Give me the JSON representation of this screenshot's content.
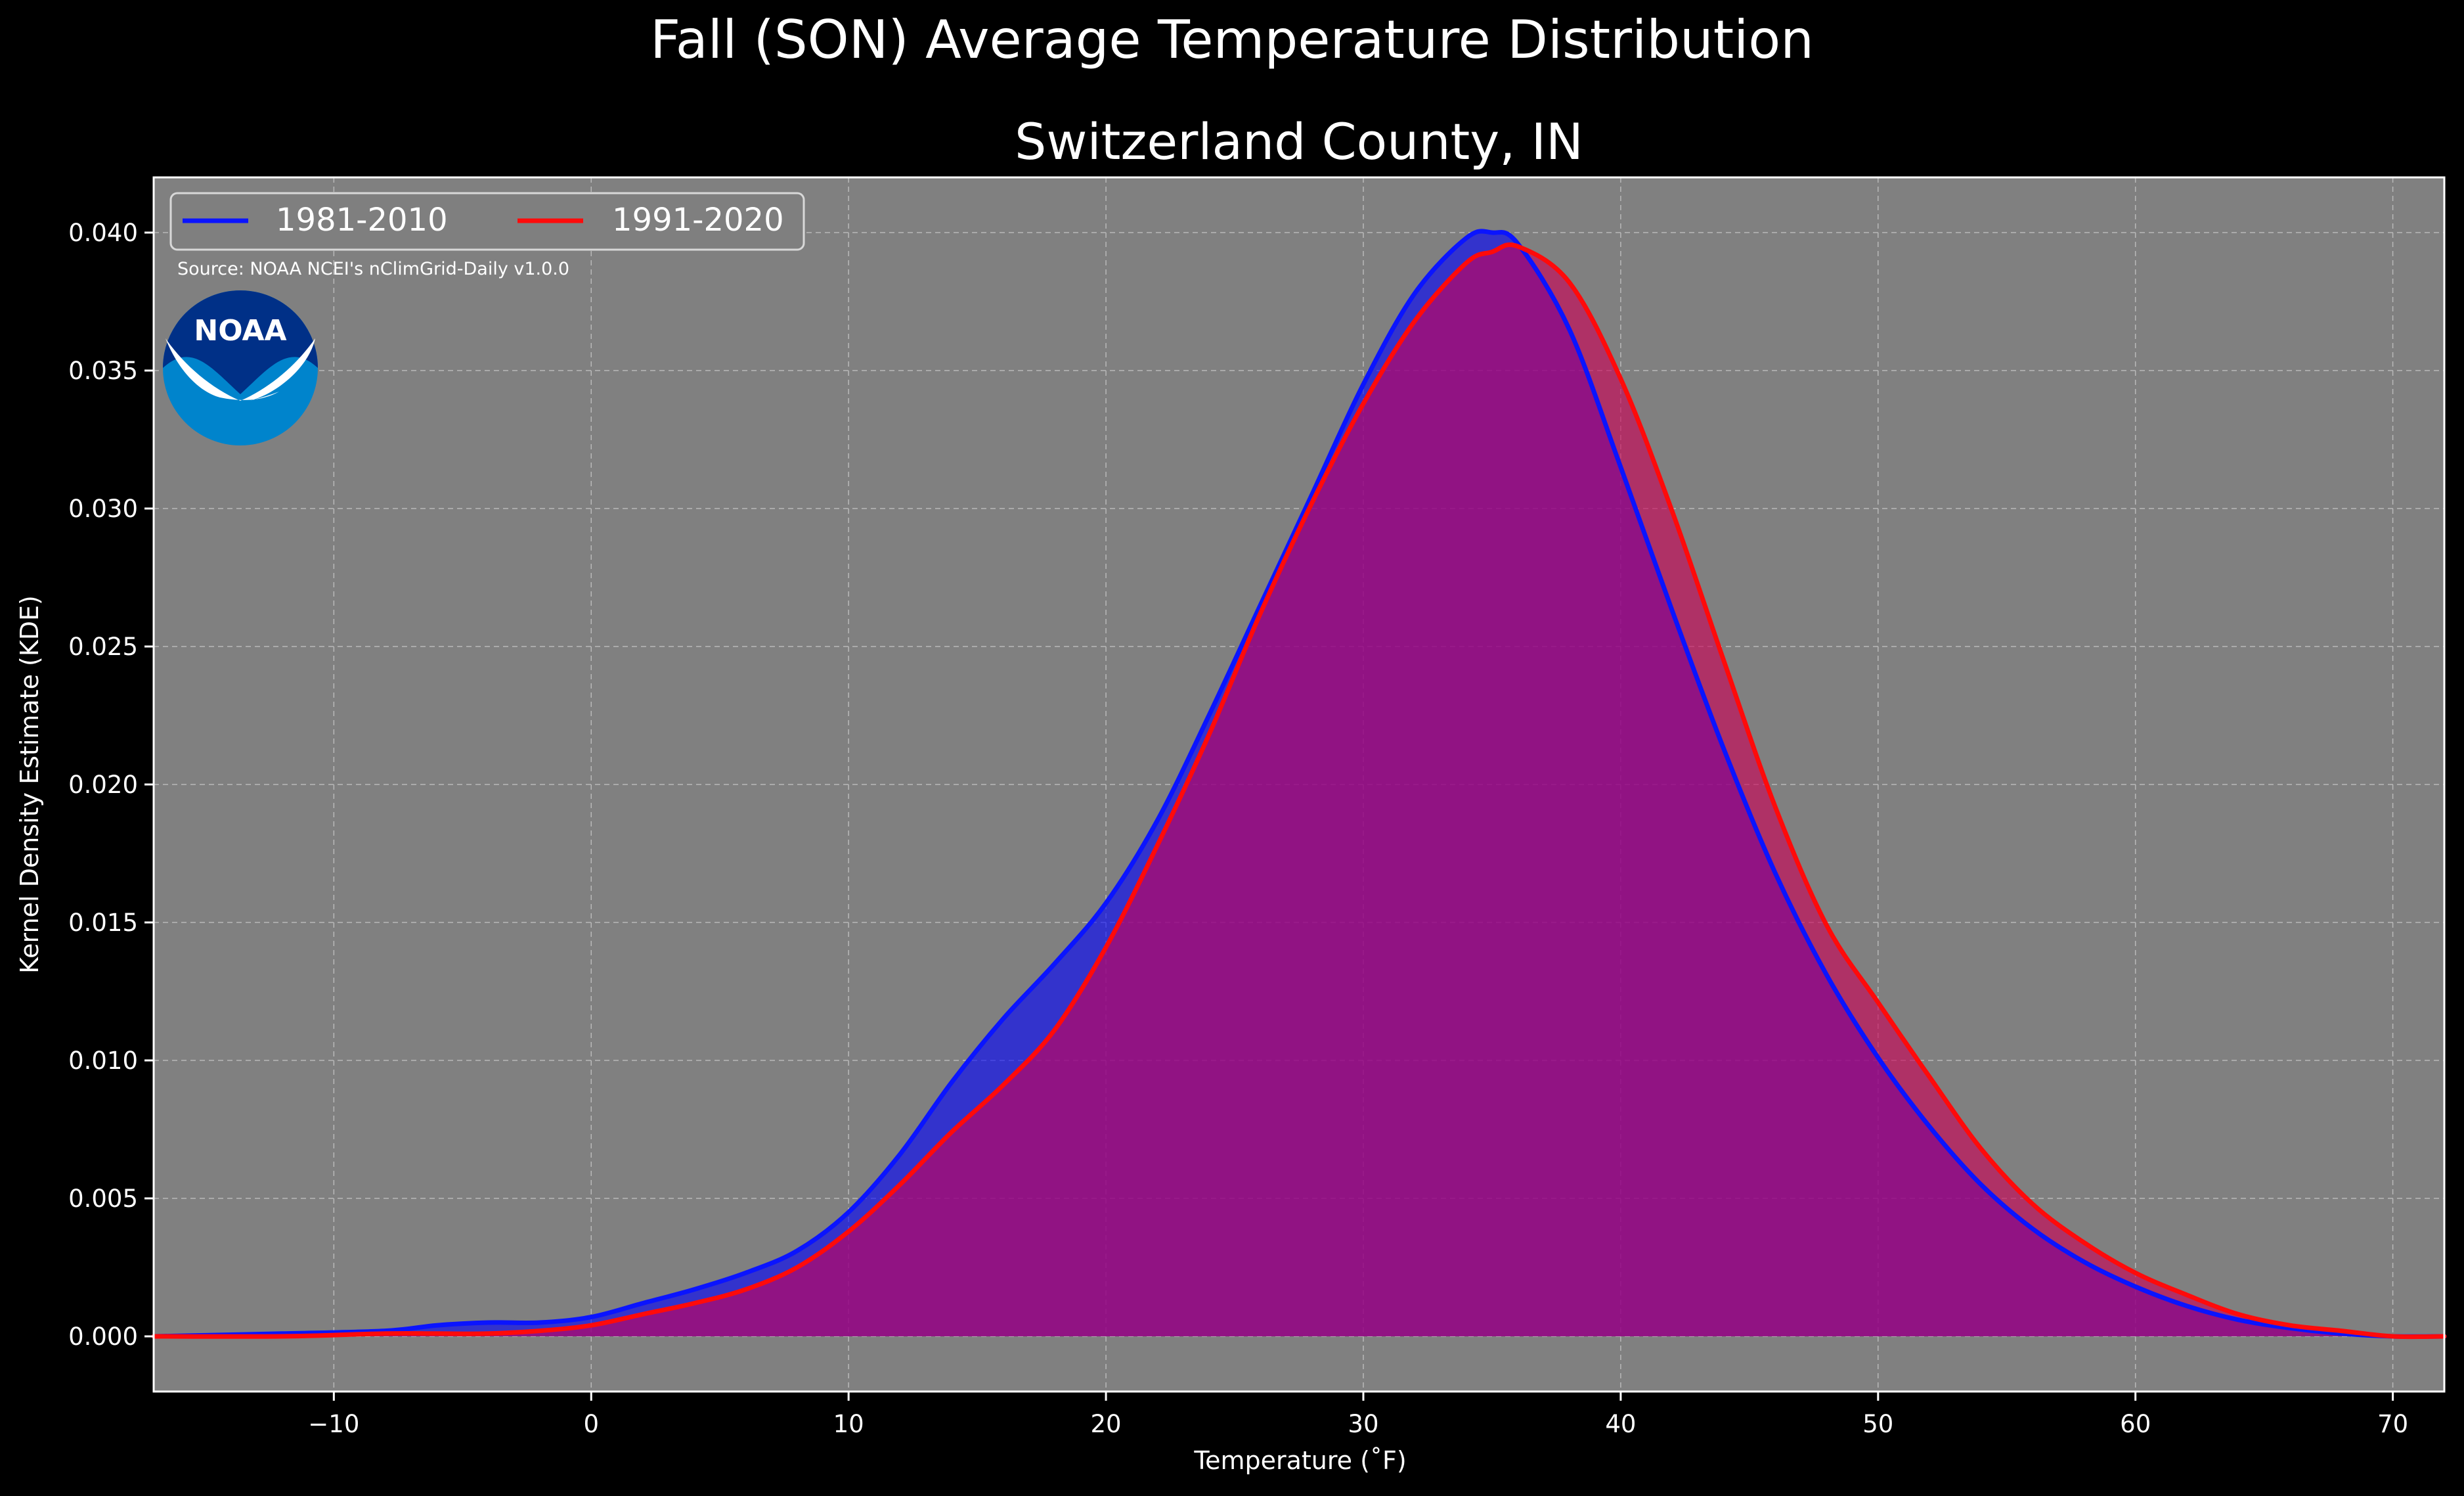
{
  "suptitle": "Fall (SON) Average Temperature Distribution",
  "source_note": "Source: NOAA NCEI's nClimGrid-Daily v1.0.0",
  "logo": {
    "icon": "noaa-logo",
    "text": "NOAA"
  },
  "colors": {
    "background": "#000000",
    "plot_background": "#808080",
    "grid": "#b8b8b8",
    "series_1981_2010": "#0a14ff",
    "series_1991_2020": "#ff0a0a",
    "fill_1981_2010": "#0000ff",
    "fill_1991_2020": "#cc0055"
  },
  "chart_data": {
    "type": "area",
    "title": "Switzerland County, IN",
    "xlabel": "Temperature (˚F)",
    "ylabel": "Kernel Density Estimate (KDE)",
    "xlim": [
      -17,
      72
    ],
    "ylim": [
      -0.002,
      0.042
    ],
    "xticks": [
      -10,
      0,
      10,
      20,
      30,
      40,
      50,
      60,
      70
    ],
    "yticks": [
      0.0,
      0.005,
      0.01,
      0.015,
      0.02,
      0.025,
      0.03,
      0.035,
      0.04
    ],
    "ytick_labels": [
      "0.000",
      "0.005",
      "0.010",
      "0.015",
      "0.020",
      "0.025",
      "0.030",
      "0.035",
      "0.040"
    ],
    "grid": true,
    "legend_position": "top-left",
    "series": [
      {
        "name": "1981-2010",
        "x": [
          -17,
          -12,
          -8,
          -6,
          -4,
          -2,
          0,
          2,
          4,
          6,
          8,
          10,
          12,
          14,
          16,
          18,
          20,
          22,
          24,
          26,
          28,
          30,
          32,
          34,
          35,
          36,
          38,
          40,
          42,
          44,
          46,
          48,
          50,
          52,
          54,
          56,
          58,
          60,
          62,
          64,
          66,
          68,
          70,
          72
        ],
        "y": [
          0.0,
          0.0001,
          0.0002,
          0.0004,
          0.0005,
          0.0005,
          0.0007,
          0.0012,
          0.0017,
          0.0023,
          0.0031,
          0.0045,
          0.0066,
          0.0092,
          0.0115,
          0.0135,
          0.0157,
          0.0187,
          0.0225,
          0.0265,
          0.0305,
          0.0345,
          0.0378,
          0.0398,
          0.04,
          0.0396,
          0.0365,
          0.0315,
          0.0263,
          0.0213,
          0.0168,
          0.0131,
          0.0101,
          0.0076,
          0.0055,
          0.0039,
          0.0027,
          0.0018,
          0.0011,
          0.0006,
          0.0003,
          0.0001,
          0.0,
          0.0
        ]
      },
      {
        "name": "1991-2020",
        "x": [
          -17,
          -12,
          -8,
          -6,
          -4,
          -2,
          0,
          2,
          4,
          6,
          8,
          10,
          12,
          14,
          16,
          18,
          20,
          22,
          24,
          26,
          28,
          30,
          32,
          34,
          35,
          36,
          38,
          40,
          42,
          44,
          46,
          48,
          50,
          52,
          54,
          56,
          58,
          60,
          62,
          64,
          66,
          68,
          70,
          72
        ],
        "y": [
          0.0,
          0.0,
          0.0001,
          0.0001,
          0.0001,
          0.0002,
          0.0004,
          0.0008,
          0.0012,
          0.0017,
          0.0025,
          0.0038,
          0.0055,
          0.0074,
          0.0091,
          0.0111,
          0.0141,
          0.0178,
          0.0218,
          0.0262,
          0.0302,
          0.0338,
          0.0368,
          0.0389,
          0.0393,
          0.0395,
          0.0382,
          0.0347,
          0.0299,
          0.0245,
          0.0192,
          0.0149,
          0.0121,
          0.0094,
          0.0068,
          0.0048,
          0.0034,
          0.0023,
          0.0015,
          0.0008,
          0.0004,
          0.0002,
          0.0,
          0.0
        ]
      }
    ]
  }
}
